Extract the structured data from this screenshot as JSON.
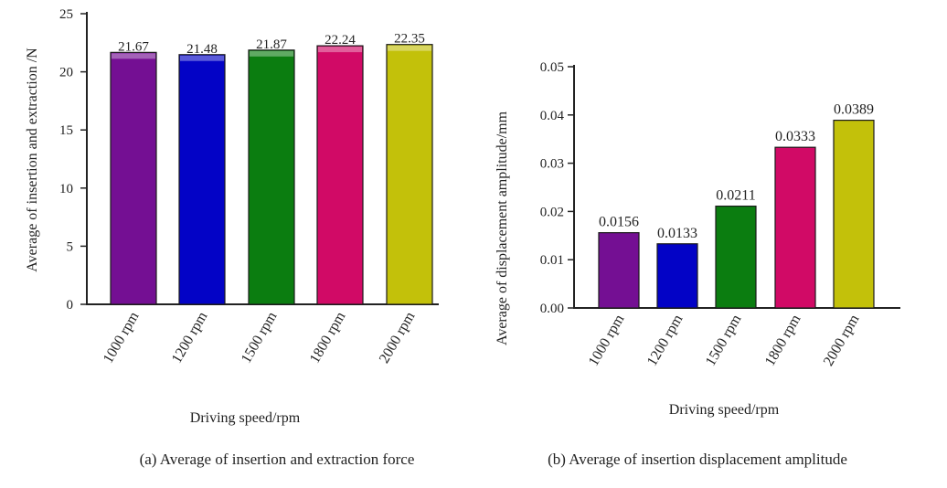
{
  "chart_data": [
    {
      "type": "bar",
      "panel_caption": "(a)  Average of insertion and extraction force",
      "xlabel": "Driving speed/rpm",
      "ylabel": "Average of insertion and extraction /N",
      "categories": [
        "1000 rpm",
        "1200 rpm",
        "1500 rpm",
        "1800 rpm",
        "2000 rpm"
      ],
      "values": [
        21.67,
        21.48,
        21.87,
        22.24,
        22.35
      ],
      "data_labels": [
        "21.67",
        "21.48",
        "21.87",
        "22.24",
        "22.35"
      ],
      "ylim": [
        0,
        25
      ],
      "yticks": [
        0,
        5,
        10,
        15,
        20,
        25
      ],
      "ytick_labels": [
        "0",
        "5",
        "10",
        "15",
        "20",
        "25"
      ],
      "colors": [
        "#740f93",
        "#0303c6",
        "#0b7d10",
        "#d10a66",
        "#c3c10a"
      ],
      "grid": false,
      "legend": "none"
    },
    {
      "type": "bar",
      "panel_caption": "(b) Average of insertion displacement amplitude",
      "xlabel": "Driving speed/rpm",
      "ylabel": "Average of displacement amplitude/mm",
      "categories": [
        "1000 rpm",
        "1200 rpm",
        "1500 rpm",
        "1800 rpm",
        "2000 rpm"
      ],
      "values": [
        0.0156,
        0.0133,
        0.0211,
        0.0333,
        0.0389
      ],
      "data_labels": [
        "0.0156",
        "0.0133",
        "0.0211",
        "0.0333",
        "0.0389"
      ],
      "ylim": [
        0,
        0.05
      ],
      "yticks": [
        0,
        0.01,
        0.02,
        0.03,
        0.04,
        0.05
      ],
      "ytick_labels": [
        "0.00",
        "0.01",
        "0.02",
        "0.03",
        "0.04",
        "0.05"
      ],
      "colors": [
        "#740f93",
        "#0303c6",
        "#0b7d10",
        "#d10a66",
        "#c3c10a"
      ],
      "grid": false,
      "legend": "none"
    }
  ]
}
